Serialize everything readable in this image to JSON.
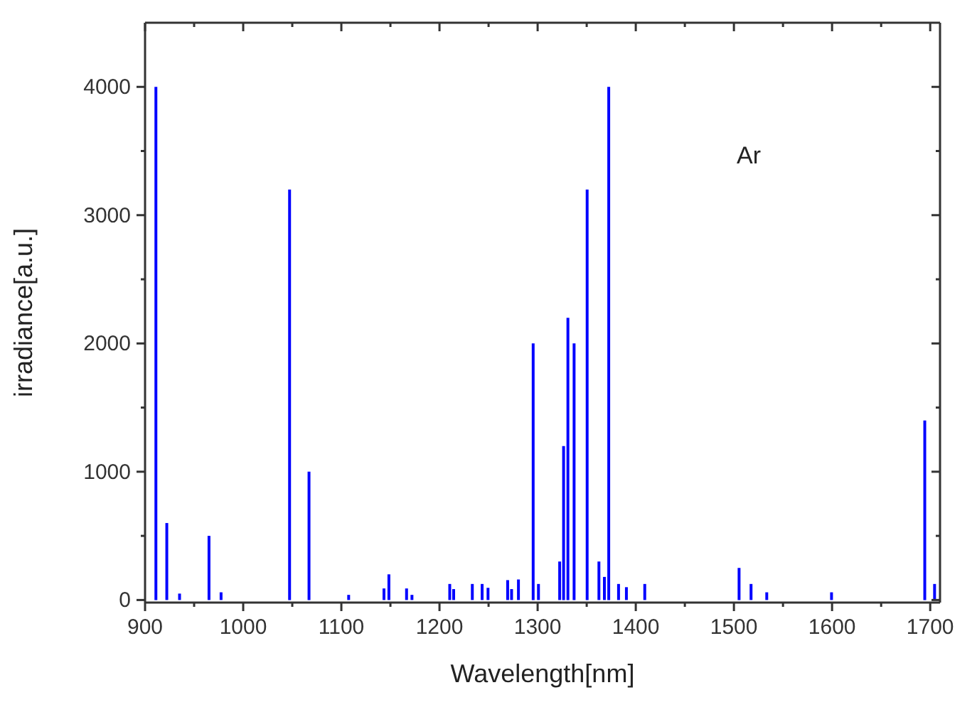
{
  "chart_data": {
    "type": "bar",
    "xlabel": "Wavelength[nm]",
    "ylabel": "irradiance[a.u.]",
    "annotations": [
      "Ar"
    ],
    "color": "#0000ff",
    "x": [
      911.6,
      922.7,
      935.7,
      965.7,
      978,
      1047.8,
      1067.6,
      1108,
      1144,
      1149,
      1167,
      1172.5,
      1211,
      1215,
      1234,
      1244,
      1250,
      1270,
      1274,
      1281,
      1296,
      1301.4,
      1323,
      1327,
      1331.4,
      1337.7,
      1351,
      1363,
      1368.6,
      1373,
      1383,
      1391,
      1409.7,
      1505.8,
      1518,
      1534,
      1600,
      1695,
      1705
    ],
    "values": [
      4000,
      600,
      50,
      500,
      60,
      3200,
      1000,
      40,
      90,
      200,
      90,
      40,
      125,
      85,
      125,
      125,
      95,
      155,
      85,
      160,
      2000,
      125,
      300,
      1200,
      2200,
      2000,
      3200,
      300,
      180,
      4000,
      125,
      100,
      125,
      250,
      125,
      60,
      60,
      1400,
      125
    ],
    "xlim": [
      900,
      1710
    ],
    "xticks": [
      900,
      {
        "value": 950,
        "label": null
      },
      1000,
      {
        "value": 1050,
        "label": null
      },
      1100,
      {
        "value": 1150,
        "label": null
      },
      1200,
      {
        "value": 1250,
        "label": null
      },
      1300,
      {
        "value": 1350,
        "label": null
      },
      1400,
      {
        "value": 1450,
        "label": null
      },
      1500,
      {
        "value": 1550,
        "label": null
      },
      1600,
      {
        "value": 1650,
        "label": null
      },
      1700
    ],
    "ylim": [
      -20,
      4500
    ],
    "yticks": [
      0,
      {
        "value": 500,
        "label": null
      },
      1000,
      {
        "value": 1500,
        "label": null
      },
      2000,
      {
        "value": 2500,
        "label": null
      },
      3000,
      {
        "value": 3500,
        "label": null
      },
      4000
    ],
    "grid": false,
    "legend": false
  }
}
